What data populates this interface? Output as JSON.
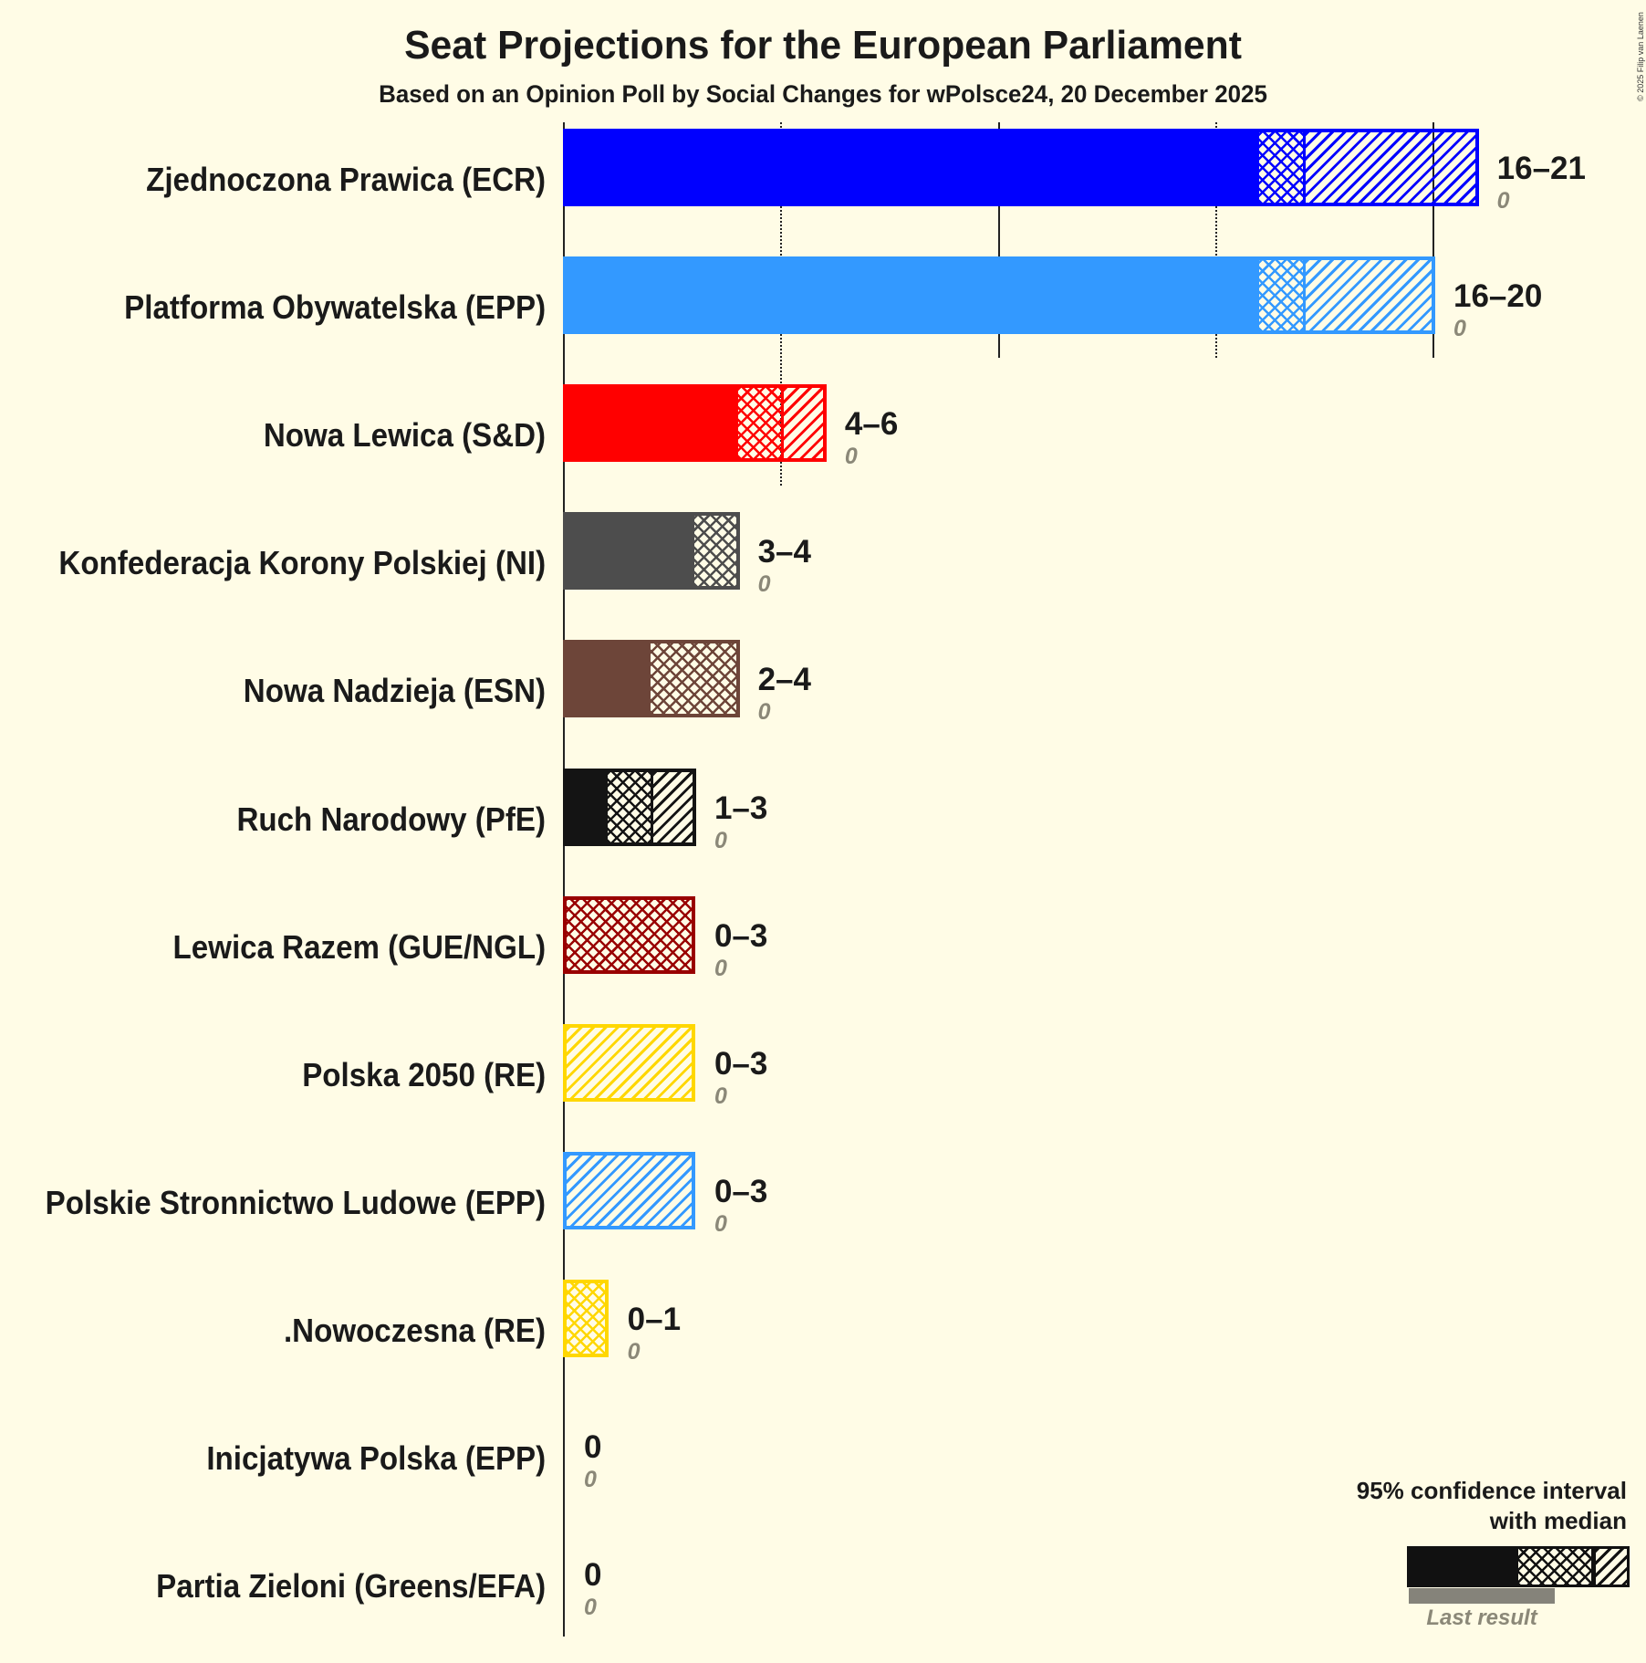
{
  "header": {
    "title": "Seat Projections for the European Parliament",
    "subtitle": "Based on an Opinion Poll by Social Changes for wPolsce24, 20 December 2025",
    "copyright": "© 2025 Filip van Laenen"
  },
  "legend": {
    "line1": "95% confidence interval",
    "line2": "with median",
    "last_result": "Last result",
    "sample": {
      "lower": 0,
      "median": 0,
      "upper": 0,
      "color": "#111111"
    }
  },
  "colors": {
    "background": "#FFFCE6",
    "text": "#1a1a1a",
    "last_result_text": "#8B8878",
    "axis": "#222222"
  },
  "chart_data": {
    "type": "bar",
    "orientation": "horizontal",
    "title": "Seat Projections for the European Parliament",
    "subtitle": "Based on an Opinion Poll by Social Changes for wPolsce24, 20 December 2025",
    "xlabel": "",
    "ylabel": "",
    "xlim": [
      0,
      21
    ],
    "gridlines": [
      {
        "value": 5,
        "style": "dotted"
      },
      {
        "value": 10,
        "style": "solid"
      },
      {
        "value": 15,
        "style": "dotted"
      },
      {
        "value": 20,
        "style": "solid"
      }
    ],
    "legend_position": "bottom-right",
    "categories": [
      "Zjednoczona Prawica (ECR)",
      "Platforma Obywatelska (EPP)",
      "Nowa Lewica (S&D)",
      "Konfederacja Korony Polskiej (NI)",
      "Nowa Nadzieja (ESN)",
      "Ruch Narodowy (PfE)",
      "Lewica Razem (GUE/NGL)",
      "Polska 2050 (RE)",
      "Polskie Stronnictwo Ludowe (EPP)",
      ".Nowoczesna (RE)",
      "Inicjatywa Polska (EPP)",
      "Partia Zieloni (Greens/EFA)"
    ],
    "series": [
      {
        "name": "CI lower",
        "values": [
          16,
          16,
          4,
          3,
          2,
          1,
          0,
          0,
          0,
          0,
          0,
          0
        ]
      },
      {
        "name": "Median",
        "values": [
          17,
          17,
          5,
          4,
          4,
          2,
          3,
          0,
          0,
          1,
          0,
          0
        ]
      },
      {
        "name": "CI upper",
        "values": [
          21,
          20,
          6,
          4,
          4,
          3,
          3,
          3,
          3,
          1,
          0,
          0
        ]
      },
      {
        "name": "Last result",
        "values": [
          0,
          0,
          0,
          0,
          0,
          0,
          0,
          0,
          0,
          0,
          0,
          0
        ]
      }
    ],
    "parties": [
      {
        "name": "Zjednoczona Prawica (ECR)",
        "lower": 16,
        "median": 17,
        "upper": 21,
        "last_result": 0,
        "range_label": "16–21",
        "last_result_label": "0",
        "color": "#0000FF"
      },
      {
        "name": "Platforma Obywatelska (EPP)",
        "lower": 16,
        "median": 17,
        "upper": 20,
        "last_result": 0,
        "range_label": "16–20",
        "last_result_label": "0",
        "color": "#3399FF"
      },
      {
        "name": "Nowa Lewica (S&D)",
        "lower": 4,
        "median": 5,
        "upper": 6,
        "last_result": 0,
        "range_label": "4–6",
        "last_result_label": "0",
        "color": "#FF0000"
      },
      {
        "name": "Konfederacja Korony Polskiej (NI)",
        "lower": 3,
        "median": 4,
        "upper": 4,
        "last_result": 0,
        "range_label": "3–4",
        "last_result_label": "0",
        "color": "#4D4D4D"
      },
      {
        "name": "Nowa Nadzieja (ESN)",
        "lower": 2,
        "median": 4,
        "upper": 4,
        "last_result": 0,
        "range_label": "2–4",
        "last_result_label": "0",
        "color": "#6D4539"
      },
      {
        "name": "Ruch Narodowy (PfE)",
        "lower": 1,
        "median": 2,
        "upper": 3,
        "last_result": 0,
        "range_label": "1–3",
        "last_result_label": "0",
        "color": "#141414"
      },
      {
        "name": "Lewica Razem (GUE/NGL)",
        "lower": 0,
        "median": 3,
        "upper": 3,
        "last_result": 0,
        "range_label": "0–3",
        "last_result_label": "0",
        "color": "#990000"
      },
      {
        "name": "Polska 2050 (RE)",
        "lower": 0,
        "median": 0,
        "upper": 3,
        "last_result": 0,
        "range_label": "0–3",
        "last_result_label": "0",
        "color": "#FFD700"
      },
      {
        "name": "Polskie Stronnictwo Ludowe (EPP)",
        "lower": 0,
        "median": 0,
        "upper": 3,
        "last_result": 0,
        "range_label": "0–3",
        "last_result_label": "0",
        "color": "#3399FF"
      },
      {
        "name": ".Nowoczesna (RE)",
        "lower": 0,
        "median": 1,
        "upper": 1,
        "last_result": 0,
        "range_label": "0–1",
        "last_result_label": "0",
        "color": "#FFD700"
      },
      {
        "name": "Inicjatywa Polska (EPP)",
        "lower": 0,
        "median": 0,
        "upper": 0,
        "last_result": 0,
        "range_label": "0",
        "last_result_label": "0",
        "color": "#3399FF"
      },
      {
        "name": "Partia Zieloni (Greens/EFA)",
        "lower": 0,
        "median": 0,
        "upper": 0,
        "last_result": 0,
        "range_label": "0",
        "last_result_label": "0",
        "color": "#1a1a1a"
      }
    ]
  }
}
